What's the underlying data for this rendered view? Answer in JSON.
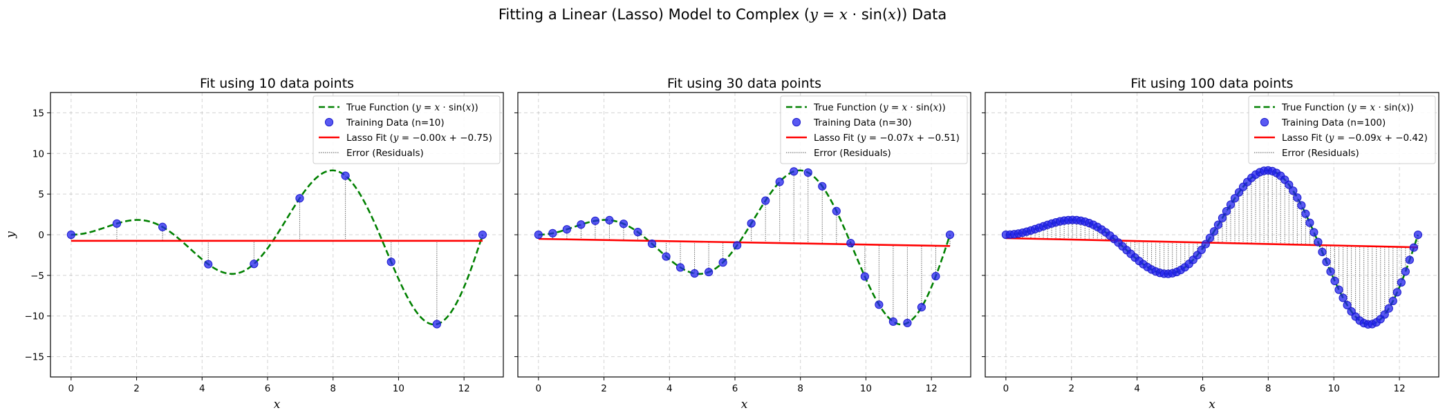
{
  "chart_data": {
    "suptitle": "Fitting a Linear (Lasso) Model to Complex ($y = x \\cdot \\sin(x)$) Data",
    "colors": {
      "true_function": "#008000",
      "training": "#2222ee",
      "lasso": "#ff0000",
      "residual": "#555555"
    },
    "shared": {
      "xlabel": "x",
      "ylabel": "y",
      "xlim": [
        -0.63,
        13.2
      ],
      "ylim": [
        -17.5,
        17.5
      ],
      "xticks": [
        0,
        2,
        4,
        6,
        8,
        10,
        12
      ],
      "yticks": [
        -15,
        -10,
        -5,
        0,
        5,
        10,
        15
      ],
      "grid": true,
      "legend_position": "upper right",
      "true_function": "y = x*sin(x)",
      "x_range": [
        0,
        12.566
      ]
    },
    "panels": [
      {
        "type": "line+scatter",
        "title": "Fit using 10 data points",
        "n": 10,
        "legend": [
          "True Function ($y = x \\cdot \\sin(x)$)",
          "Training Data (n=10)",
          "Lasso Fit ($y = -0.00x + -0.75$)",
          "Error (Residuals)"
        ],
        "lasso": {
          "slope": -0.0,
          "intercept": -0.75
        }
      },
      {
        "type": "line+scatter",
        "title": "Fit using 30 data points",
        "n": 30,
        "legend": [
          "True Function ($y = x \\cdot \\sin(x)$)",
          "Training Data (n=30)",
          "Lasso Fit ($y = -0.07x + -0.51$)",
          "Error (Residuals)"
        ],
        "lasso": {
          "slope": -0.07,
          "intercept": -0.51
        }
      },
      {
        "type": "line+scatter",
        "title": "Fit using 100 data points",
        "n": 100,
        "legend": [
          "True Function ($y = x \\cdot \\sin(x)$)",
          "Training Data (n=100)",
          "Lasso Fit ($y = -0.09x + -0.42$)",
          "Error (Residuals)"
        ],
        "lasso": {
          "slope": -0.09,
          "intercept": -0.42
        }
      }
    ]
  }
}
